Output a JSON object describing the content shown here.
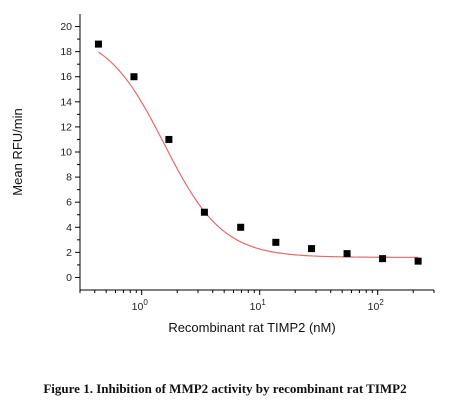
{
  "chart_data": {
    "type": "scatter",
    "title": "",
    "xlabel": "Recombinant rat TIMP2 (nM)",
    "ylabel": "Mean RFU/min",
    "x_scale": "log",
    "xlim": [
      0.3,
      300
    ],
    "ylim": [
      -1,
      21
    ],
    "y_ticks": [
      0,
      2,
      4,
      6,
      8,
      10,
      12,
      14,
      16,
      18,
      20
    ],
    "x_major_ticks": [
      1,
      10,
      100
    ],
    "x_tick_labels": [
      {
        "base": "10",
        "exp": "0",
        "value": 1
      },
      {
        "base": "10",
        "exp": "1",
        "value": 10
      },
      {
        "base": "10",
        "exp": "2",
        "value": 100
      }
    ],
    "grid": false,
    "legend": "none",
    "series": [
      {
        "marker": "square",
        "color": "#000000",
        "x": [
          0.43,
          0.86,
          1.7,
          3.4,
          6.9,
          13.7,
          27.5,
          55,
          110,
          220
        ],
        "y": [
          18.6,
          16.0,
          11.0,
          5.2,
          4.0,
          2.8,
          2.3,
          1.9,
          1.5,
          1.3
        ]
      }
    ],
    "fit": {
      "type": "sigmoidal",
      "color": "#e26b6b",
      "top": 19.7,
      "bottom": 1.6,
      "ec50": 1.55,
      "hill": 1.75
    }
  },
  "caption": "Figure 1. Inhibition of MMP2 activity by recombinant rat TIMP2"
}
